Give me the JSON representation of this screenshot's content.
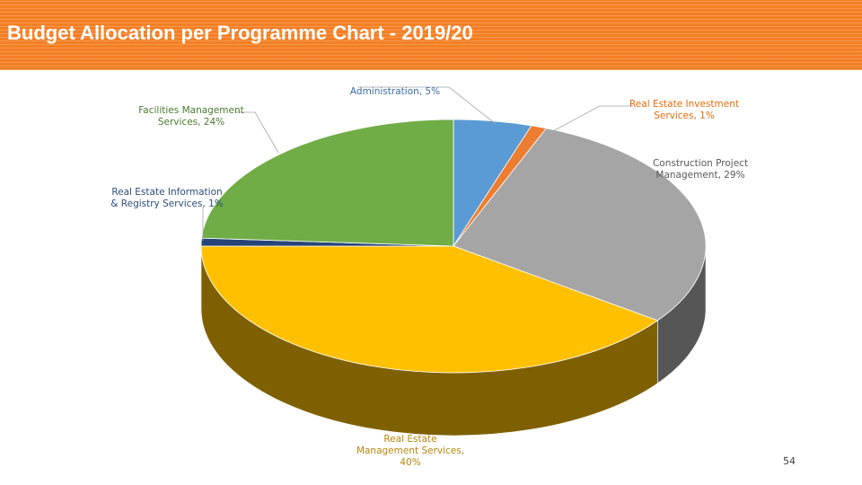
{
  "header": {
    "title": "Budget Allocation per Programme Chart - 2019/20"
  },
  "chart_data": {
    "type": "pie",
    "title": "",
    "style": "3d",
    "slices": [
      {
        "label": "Administration, 5%",
        "name": "Administration",
        "value": 5,
        "color": "#5b9bd5",
        "side_color": "#3a6fa3",
        "label_color": "#3d6da7"
      },
      {
        "label": "Real Estate Investment Services, 1%",
        "name": "Real Estate Investment Services",
        "value": 1,
        "color": "#ed7d31",
        "side_color": "#b35a1f",
        "label_color": "#e46c0a"
      },
      {
        "label": "Construction Project Management, 29%",
        "name": "Construction Project Management",
        "value": 29,
        "color": "#a5a5a5",
        "side_color": "#565656",
        "label_color": "#595959"
      },
      {
        "label": "Real Estate Management Services, 40%",
        "name": "Real Estate Management Services",
        "value": 40,
        "color": "#ffc000",
        "side_color": "#7f6000",
        "label_color": "#b8860b"
      },
      {
        "label": "Real Estate Information & Registry Services, 1%",
        "name": "Real Estate Information & Registry Services",
        "value": 1,
        "color": "#264478",
        "side_color": "#162a4d",
        "label_color": "#2e4d7b"
      },
      {
        "label": "Facilities Management Services, 24%",
        "name": "Facilities Management Services",
        "value": 24,
        "color": "#70ad47",
        "side_color": "#4a7a2c",
        "label_color": "#4a7a2c"
      }
    ]
  },
  "footer": {
    "page_number": "54"
  }
}
